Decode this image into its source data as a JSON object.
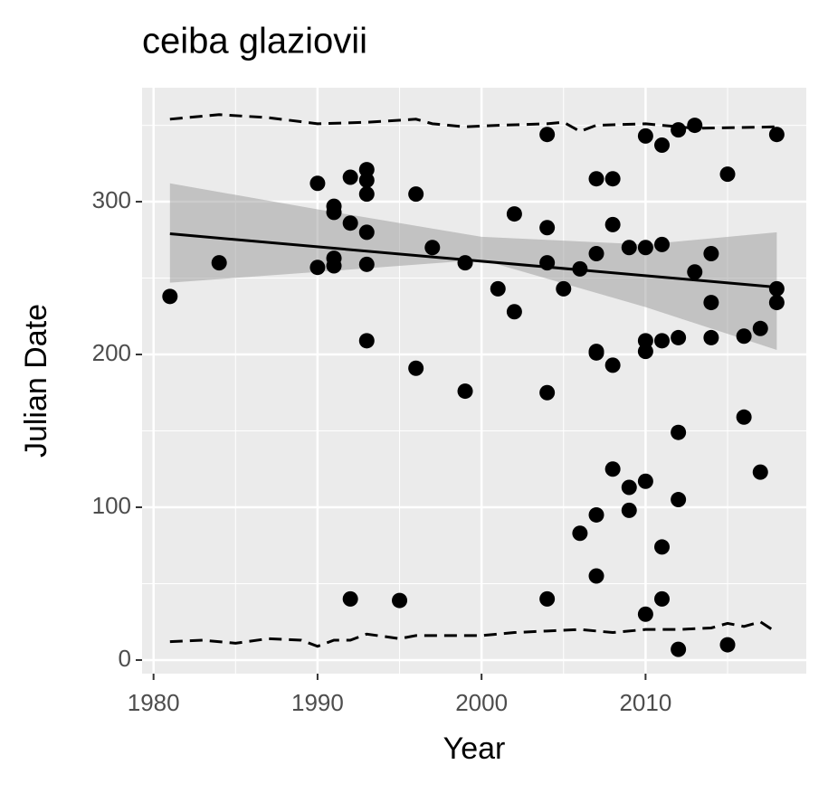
{
  "chart_data": {
    "type": "scatter",
    "title": "ceiba glaziovii",
    "x_label": "Year",
    "y_label": "Julian Date",
    "xlim": [
      1979.3,
      2019.8
    ],
    "ylim": [
      -8.9,
      374.6
    ],
    "xticks": [
      1980,
      1990,
      2000,
      2010
    ],
    "yticks": [
      0,
      100,
      200,
      300
    ],
    "minor_xticks": [
      1985,
      1995,
      2005,
      2015
    ],
    "minor_yticks": [
      50,
      150,
      250,
      350
    ],
    "grid": true,
    "background": "#ebebeb",
    "points": {
      "color": "#000000",
      "x": [
        1981,
        1984,
        1990,
        1990,
        1991,
        1991,
        1991,
        1991,
        1992,
        1992,
        1992,
        1993,
        1993,
        1993,
        1993,
        1993,
        1993,
        1995,
        1996,
        1996,
        1997,
        1999,
        1999,
        2001,
        2002,
        2002,
        2004,
        2004,
        2004,
        2004,
        2004,
        2005,
        2006,
        2006,
        2007,
        2007,
        2007,
        2007,
        2007,
        2007,
        2008,
        2008,
        2008,
        2008,
        2009,
        2009,
        2009,
        2010,
        2010,
        2010,
        2010,
        2010,
        2010,
        2011,
        2011,
        2011,
        2011,
        2011,
        2012,
        2012,
        2012,
        2012,
        2012,
        2013,
        2013,
        2014,
        2014,
        2014,
        2015,
        2015,
        2016,
        2016,
        2017,
        2017,
        2018,
        2018,
        2018
      ],
      "y": [
        238,
        260,
        312,
        257,
        297,
        293,
        263,
        258,
        316,
        286,
        40,
        321,
        314,
        305,
        280,
        259,
        209,
        39,
        305,
        191,
        270,
        260,
        176,
        243,
        292,
        228,
        344,
        283,
        260,
        175,
        40,
        243,
        256,
        83,
        315,
        266,
        202,
        201,
        95,
        55,
        315,
        285,
        193,
        125,
        270,
        113,
        98,
        343,
        270,
        209,
        202,
        117,
        30,
        337,
        272,
        209,
        74,
        40,
        347,
        211,
        149,
        105,
        7,
        350,
        254,
        266,
        234,
        211,
        318,
        10,
        212,
        159,
        217,
        123,
        344,
        243,
        234
      ]
    },
    "trend": {
      "color": "#000000",
      "x": [
        1981,
        2018
      ],
      "y": [
        279,
        244
      ]
    },
    "band": {
      "color": "#999999",
      "x": [
        1981,
        1990,
        2000,
        2010,
        2018
      ],
      "lower": [
        247,
        254,
        262,
        231,
        203
      ],
      "upper": [
        312,
        295,
        277,
        272,
        280
      ]
    },
    "quantile_upper": {
      "color": "#000000",
      "x": [
        1981,
        1984,
        1987,
        1990,
        1993,
        1996,
        1997,
        1999,
        2001,
        2004,
        2005,
        2006,
        2007,
        2010,
        2013,
        2018
      ],
      "y": [
        354,
        357,
        355,
        351,
        352,
        354,
        351,
        349,
        350,
        351,
        352,
        346,
        350,
        351,
        348,
        349
      ]
    },
    "quantile_lower": {
      "color": "#000000",
      "x": [
        1981,
        1983,
        1985,
        1987,
        1989,
        1990,
        1991,
        1992,
        1993,
        1995,
        1996,
        1998,
        2000,
        2002,
        2004,
        2006,
        2008,
        2010,
        2012,
        2014,
        2015,
        2016,
        2017,
        2018
      ],
      "y": [
        12,
        13,
        11,
        14,
        13,
        9,
        13,
        13,
        17,
        14,
        16,
        16,
        16,
        18,
        19,
        20,
        18,
        20,
        20,
        21,
        24,
        22,
        25,
        18
      ]
    }
  }
}
